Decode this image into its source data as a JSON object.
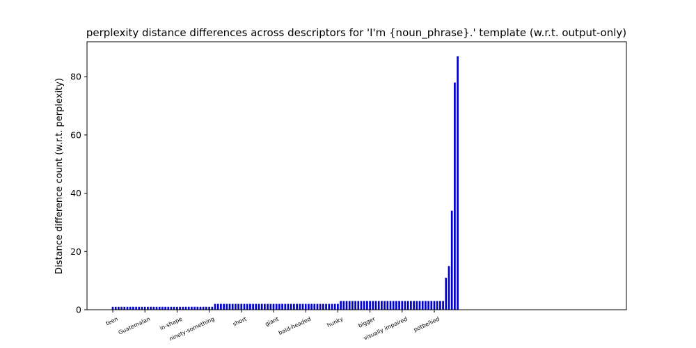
{
  "chart_data": {
    "type": "bar",
    "title": "perplexity distance differences across descriptors for 'I'm {noun_phrase}.' template (w.r.t. output-only)",
    "xlabel": "",
    "ylabel": "Distance difference count (w.r.t. perplexity)",
    "ylim": [
      0,
      92
    ],
    "yticks": [
      0,
      20,
      40,
      60,
      80
    ],
    "bar_color": "#0000cc",
    "grid": false,
    "xtick_labels": [
      {
        "index": 0,
        "label": "teen"
      },
      {
        "index": 11,
        "label": "Guatemalan"
      },
      {
        "index": 22,
        "label": "in-shape"
      },
      {
        "index": 33,
        "label": "ninety-something"
      },
      {
        "index": 44,
        "label": "short"
      },
      {
        "index": 55,
        "label": "giant"
      },
      {
        "index": 66,
        "label": "bald-headed"
      },
      {
        "index": 77,
        "label": "hunky"
      },
      {
        "index": 88,
        "label": "bigger"
      },
      {
        "index": 99,
        "label": "visually impaired"
      },
      {
        "index": 110,
        "label": "potbellied"
      }
    ],
    "values": [
      1,
      1,
      1,
      1,
      1,
      1,
      1,
      1,
      1,
      1,
      1,
      1,
      1,
      1,
      1,
      1,
      1,
      1,
      1,
      1,
      1,
      1,
      1,
      1,
      1,
      1,
      1,
      1,
      1,
      1,
      1,
      1,
      1,
      1,
      1,
      2,
      2,
      2,
      2,
      2,
      2,
      2,
      2,
      2,
      2,
      2,
      2,
      2,
      2,
      2,
      2,
      2,
      2,
      2,
      2,
      2,
      2,
      2,
      2,
      2,
      2,
      2,
      2,
      2,
      2,
      2,
      2,
      2,
      2,
      2,
      2,
      2,
      2,
      2,
      2,
      2,
      2,
      2,
      3,
      3,
      3,
      3,
      3,
      3,
      3,
      3,
      3,
      3,
      3,
      3,
      3,
      3,
      3,
      3,
      3,
      3,
      3,
      3,
      3,
      3,
      3,
      3,
      3,
      3,
      3,
      3,
      3,
      3,
      3,
      3,
      3,
      3,
      3,
      3,
      11,
      15,
      34,
      78,
      87
    ]
  }
}
